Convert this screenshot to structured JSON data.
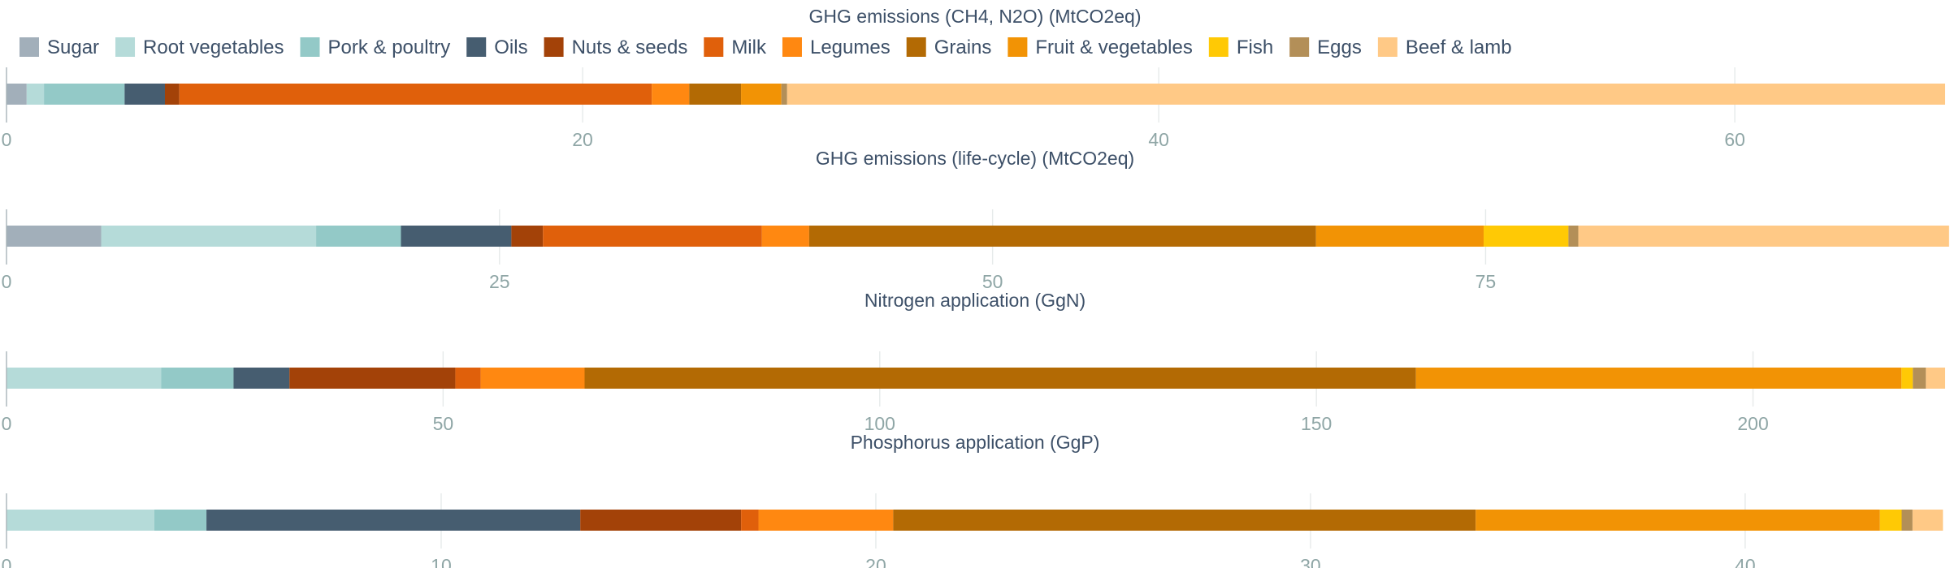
{
  "chart_data": {
    "type": "bar",
    "orientation": "horizontal",
    "stacked": true,
    "grid": true,
    "legend": {
      "position": "top-left",
      "entries": [
        {
          "name": "Sugar",
          "color": "#a2afba"
        },
        {
          "name": "Root vegetables",
          "color": "#b5dbd9"
        },
        {
          "name": "Pork & poultry",
          "color": "#93c9c7"
        },
        {
          "name": "Oils",
          "color": "#465d70"
        },
        {
          "name": "Nuts & seeds",
          "color": "#a34208"
        },
        {
          "name": "Milk",
          "color": "#e0600b"
        },
        {
          "name": "Legumes",
          "color": "#ff8811"
        },
        {
          "name": "Grains",
          "color": "#b36a04"
        },
        {
          "name": "Fruit & vegetables",
          "color": "#f29305"
        },
        {
          "name": "Fish",
          "color": "#ffc905"
        },
        {
          "name": "Eggs",
          "color": "#b38f58"
        },
        {
          "name": "Beef & lamb",
          "color": "#ffc986"
        }
      ]
    },
    "panels": [
      {
        "title": "GHG emissions (CH4, N2O) (MtCO2eq)",
        "xlim": [
          0,
          67.3
        ],
        "ticks": [
          0,
          20,
          40,
          60
        ],
        "values": {
          "Sugar": 0.7,
          "Root vegetables": 0.6,
          "Pork & poultry": 2.8,
          "Oils": 1.4,
          "Nuts & seeds": 0.5,
          "Milk": 16.4,
          "Legumes": 1.3,
          "Grains": 1.8,
          "Fruit & vegetables": 1.4,
          "Fish": 0.0,
          "Eggs": 0.2,
          "Beef & lamb": 40.2
        }
      },
      {
        "title": "GHG emissions (life-cycle) (MtCO2eq)",
        "xlim": [
          0,
          98.3
        ],
        "ticks": [
          0,
          25,
          50,
          75
        ],
        "values": {
          "Sugar": 4.8,
          "Root vegetables": 10.9,
          "Pork & poultry": 4.3,
          "Oils": 5.6,
          "Nuts & seeds": 1.6,
          "Milk": 11.1,
          "Legumes": 2.4,
          "Grains": 25.7,
          "Fruit & vegetables": 8.5,
          "Fish": 4.3,
          "Eggs": 0.5,
          "Beef & lamb": 18.8
        }
      },
      {
        "title": "Nitrogen application (GgN)",
        "xlim": [
          0,
          222
        ],
        "ticks": [
          0,
          50,
          100,
          150,
          200
        ],
        "values": {
          "Sugar": 0,
          "Root vegetables": 17.7,
          "Pork & poultry": 8.3,
          "Oils": 6.4,
          "Nuts & seeds": 19.0,
          "Milk": 2.9,
          "Legumes": 11.9,
          "Grains": 95.2,
          "Fruit & vegetables": 55.6,
          "Fish": 1.3,
          "Eggs": 1.5,
          "Beef & lamb": 2.2
        }
      },
      {
        "title": "Phosphorus application (GgP)",
        "xlim": [
          0,
          44.6
        ],
        "ticks": [
          0,
          10,
          20,
          30,
          40
        ],
        "values": {
          "Sugar": 0,
          "Root vegetables": 3.4,
          "Pork & poultry": 1.2,
          "Oils": 8.6,
          "Nuts & seeds": 3.7,
          "Milk": 0.4,
          "Legumes": 3.1,
          "Grains": 13.4,
          "Fruit & vegetables": 9.3,
          "Fish": 0.5,
          "Eggs": 0.25,
          "Beef & lamb": 0.7
        }
      }
    ]
  }
}
